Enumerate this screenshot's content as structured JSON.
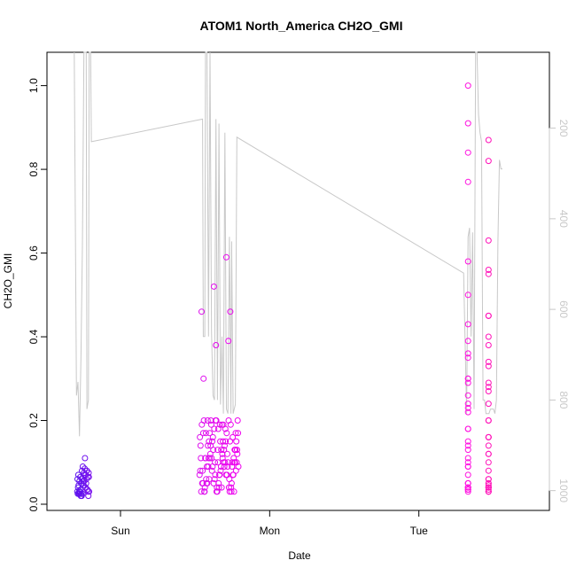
{
  "chart_data": {
    "type": "scatter",
    "title": "ATOM1 North_America CH2O_GMI",
    "xlabel": "Date",
    "ylabel": "CH2O_GMI",
    "x_ticks": [
      "Sun",
      "Mon",
      "Tue"
    ],
    "y_ticks": [
      "0.0",
      "0.2",
      "0.4",
      "0.6",
      "0.8",
      "1.0"
    ],
    "y2_ticks": [
      "200",
      "400",
      "600",
      "800",
      "1000"
    ],
    "ylim": [
      0,
      1.05
    ],
    "y2lim": [
      1030,
      60
    ],
    "x_unit": "days since first axis tick (Sun)",
    "xlim": [
      -0.38,
      2.78
    ],
    "grid": false,
    "colors": {
      "start": "#5a10ee",
      "mid": "#ee00ee",
      "end": "#ff1493",
      "line": "#c8c8c8"
    },
    "scatter_groups": [
      {
        "x_range": [
          -0.29,
          -0.21
        ],
        "color_start": "#5a10ee",
        "color_end": "#7a10ee",
        "values": [
          0.03,
          0.035,
          0.04,
          0.045,
          0.02,
          0.025,
          0.025,
          0.03,
          0.05,
          0.055,
          0.06,
          0.065,
          0.07,
          0.075,
          0.08,
          0.085,
          0.09,
          0.02,
          0.025,
          0.03,
          0.035,
          0.04,
          0.045,
          0.05,
          0.055,
          0.06,
          0.065,
          0.07,
          0.075,
          0.08,
          0.03,
          0.04,
          0.02,
          0.06,
          0.07,
          0.025,
          0.035,
          0.045,
          0.065,
          0.08,
          0.11,
          0.055,
          0.025,
          0.03
        ]
      },
      {
        "x_range": [
          0.53,
          0.79
        ],
        "color_start": "#dd10ee",
        "color_end": "#ee00ee",
        "values": [
          0.07,
          0.08,
          0.09,
          0.1,
          0.11,
          0.12,
          0.13,
          0.14,
          0.15,
          0.16,
          0.17,
          0.18,
          0.19,
          0.2,
          0.2,
          0.2,
          0.19,
          0.18,
          0.17,
          0.16,
          0.15,
          0.14,
          0.13,
          0.12,
          0.11,
          0.1,
          0.09,
          0.08,
          0.07,
          0.06,
          0.05,
          0.04,
          0.03,
          0.03,
          0.04,
          0.05,
          0.06,
          0.07,
          0.08,
          0.09,
          0.1,
          0.12,
          0.14,
          0.15,
          0.13,
          0.11,
          0.09,
          0.07,
          0.05,
          0.04,
          0.03,
          0.03,
          0.04,
          0.06,
          0.08,
          0.1,
          0.12,
          0.14,
          0.16,
          0.18,
          0.2,
          0.2,
          0.19,
          0.17,
          0.15,
          0.13,
          0.11,
          0.09,
          0.07,
          0.05,
          0.04,
          0.03,
          0.03,
          0.05,
          0.07,
          0.09,
          0.11,
          0.13,
          0.15,
          0.17,
          0.19,
          0.1,
          0.08,
          0.06,
          0.04,
          0.03,
          0.05,
          0.07,
          0.09,
          0.11,
          0.13,
          0.15,
          0.17,
          0.2,
          0.1,
          0.03,
          0.05,
          0.07,
          0.09,
          0.11,
          0.13,
          0.15,
          0.17,
          0.19,
          0.1,
          0.2,
          0.19,
          0.1,
          0.11,
          0.1,
          0.46,
          0.3,
          0.38,
          0.39,
          0.46,
          0.52,
          0.59
        ]
      },
      {
        "x_range": [
          2.33,
          2.6
        ],
        "color_start": "#ff10e0",
        "color_end": "#ff1493",
        "values": [
          0.1,
          0.12,
          0.14,
          0.16,
          0.18,
          0.2,
          0.22,
          0.24,
          0.26,
          0.28,
          0.3,
          0.34,
          0.36,
          0.4,
          0.43,
          0.45,
          0.5,
          0.55,
          0.58,
          0.63,
          0.91,
          0.45,
          0.39,
          0.38,
          0.35,
          0.33,
          0.3,
          0.27,
          0.23,
          0.2,
          0.18,
          0.16,
          0.15,
          0.14,
          0.13,
          0.12,
          0.11,
          0.1,
          0.09,
          0.08,
          0.07,
          0.06,
          0.05,
          0.045,
          0.04,
          0.04,
          0.035,
          0.035,
          0.035,
          0.03,
          0.03,
          0.03,
          0.04,
          0.05,
          0.09,
          0.16,
          0.24,
          0.29,
          0.29,
          0.56,
          0.77,
          0.82,
          0.84,
          0.87,
          1.0,
          0.06,
          0.05,
          0.04,
          0.05,
          0.05,
          0.04,
          0.04,
          0.035,
          0.03
        ]
      }
    ],
    "pressure_line": [
      [
        -0.31,
        10
      ],
      [
        -0.295,
        790
      ],
      [
        -0.285,
        760
      ],
      [
        -0.275,
        880
      ],
      [
        -0.265,
        700
      ],
      [
        -0.255,
        460
      ],
      [
        -0.245,
        10
      ],
      [
        -0.23,
        10
      ],
      [
        -0.225,
        820
      ],
      [
        -0.215,
        800
      ],
      [
        -0.21,
        10
      ],
      [
        -0.2,
        10
      ],
      [
        -0.195,
        230
      ],
      [
        0.55,
        180
      ],
      [
        0.555,
        660
      ],
      [
        0.565,
        660
      ],
      [
        0.57,
        10
      ],
      [
        0.58,
        10
      ],
      [
        0.59,
        660
      ],
      [
        0.6,
        10
      ],
      [
        0.61,
        650
      ],
      [
        0.62,
        790
      ],
      [
        0.63,
        800
      ],
      [
        0.64,
        180
      ],
      [
        0.65,
        800
      ],
      [
        0.66,
        190
      ],
      [
        0.67,
        810
      ],
      [
        0.68,
        660
      ],
      [
        0.69,
        830
      ],
      [
        0.7,
        210
      ],
      [
        0.71,
        820
      ],
      [
        0.72,
        830
      ],
      [
        0.73,
        440
      ],
      [
        0.74,
        830
      ],
      [
        0.745,
        450
      ],
      [
        0.755,
        830
      ],
      [
        0.77,
        810
      ],
      [
        0.78,
        220
      ],
      [
        2.3,
        520
      ],
      [
        2.32,
        830
      ],
      [
        2.33,
        440
      ],
      [
        2.34,
        420
      ],
      [
        2.35,
        660
      ],
      [
        2.36,
        430
      ],
      [
        2.37,
        820
      ],
      [
        2.38,
        10
      ],
      [
        2.39,
        10
      ],
      [
        2.4,
        170
      ],
      [
        2.41,
        210
      ],
      [
        2.42,
        230
      ],
      [
        2.43,
        800
      ],
      [
        2.44,
        800
      ],
      [
        2.45,
        830
      ],
      [
        2.46,
        830
      ],
      [
        2.47,
        830
      ],
      [
        2.48,
        820
      ],
      [
        2.49,
        820
      ],
      [
        2.5,
        820
      ],
      [
        2.51,
        830
      ],
      [
        2.52,
        800
      ],
      [
        2.53,
        450
      ],
      [
        2.54,
        270
      ],
      [
        2.55,
        290
      ],
      [
        2.56,
        290
      ]
    ]
  }
}
